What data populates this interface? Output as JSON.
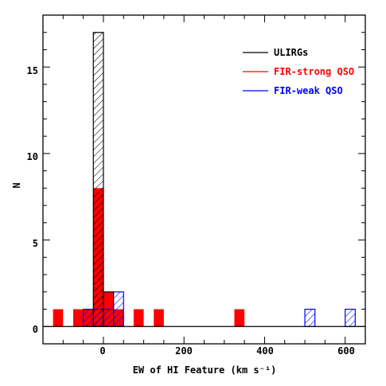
{
  "chart_data": {
    "type": "bar",
    "subtype": "histogram",
    "xlabel": "EW of HI Feature (km s⁻¹)",
    "ylabel": "N",
    "xlim": [
      -150,
      650
    ],
    "ylim": [
      -1,
      18
    ],
    "x_ticks": [
      0,
      200,
      400,
      600
    ],
    "x_tick_labels": [
      "0",
      "200",
      "400",
      "600"
    ],
    "y_ticks": [
      0,
      5,
      10,
      15
    ],
    "y_tick_labels": [
      "0",
      "5",
      "10",
      "15"
    ],
    "bin_width": 25,
    "legend_position": "top-right",
    "series": [
      {
        "name": "ULIRGs",
        "color": "#000000",
        "style": "hatched",
        "bins": [
          {
            "x0": -25,
            "x1": 0,
            "count": 17
          },
          {
            "x0": 0,
            "x1": 25,
            "count": 2
          }
        ]
      },
      {
        "name": "FIR-strong QSO",
        "color": "#ff0000",
        "style": "filled",
        "bins": [
          {
            "x0": -125,
            "x1": -100,
            "count": 1
          },
          {
            "x0": -75,
            "x1": -50,
            "count": 1
          },
          {
            "x0": -50,
            "x1": -25,
            "count": 1
          },
          {
            "x0": -25,
            "x1": 0,
            "count": 8
          },
          {
            "x0": 0,
            "x1": 25,
            "count": 2
          },
          {
            "x0": 25,
            "x1": 50,
            "count": 1
          },
          {
            "x0": 75,
            "x1": 100,
            "count": 1
          },
          {
            "x0": 125,
            "x1": 150,
            "count": 1
          },
          {
            "x0": 325,
            "x1": 350,
            "count": 1
          }
        ]
      },
      {
        "name": "FIR-weak QSO",
        "color": "#0000ff",
        "style": "hatched",
        "bins": [
          {
            "x0": -50,
            "x1": -25,
            "count": 1
          },
          {
            "x0": -25,
            "x1": 0,
            "count": 1
          },
          {
            "x0": 0,
            "x1": 25,
            "count": 1
          },
          {
            "x0": 25,
            "x1": 50,
            "count": 2
          },
          {
            "x0": 500,
            "x1": 525,
            "count": 1
          },
          {
            "x0": 600,
            "x1": 625,
            "count": 1
          }
        ]
      }
    ]
  }
}
